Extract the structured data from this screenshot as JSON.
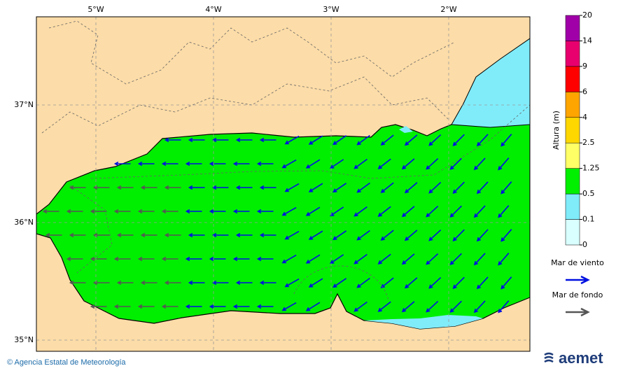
{
  "map": {
    "lon_labels": [
      "5°W",
      "4°W",
      "3°W",
      "2°W"
    ],
    "lat_labels": [
      "37°N",
      "36°N",
      "35°N"
    ],
    "colorbar": {
      "title": "Altura (m)",
      "ticks": [
        0,
        0.1,
        0.5,
        1.25,
        2.5,
        4,
        6,
        9,
        14,
        20
      ],
      "colors": [
        "#d9ffff",
        "#80ecfa",
        "#00f000",
        "#ffff66",
        "#ffd700",
        "#ffa500",
        "#ff0000",
        "#e8006e",
        "#a000a8"
      ]
    },
    "legend": [
      {
        "label": "Mar de viento",
        "color": "#0010e0"
      },
      {
        "label": "Mar de fondo",
        "color": "#555555"
      }
    ]
  },
  "footer": {
    "credit": "© Agencia Estatal de Meteorología",
    "logo": "aemet"
  }
}
